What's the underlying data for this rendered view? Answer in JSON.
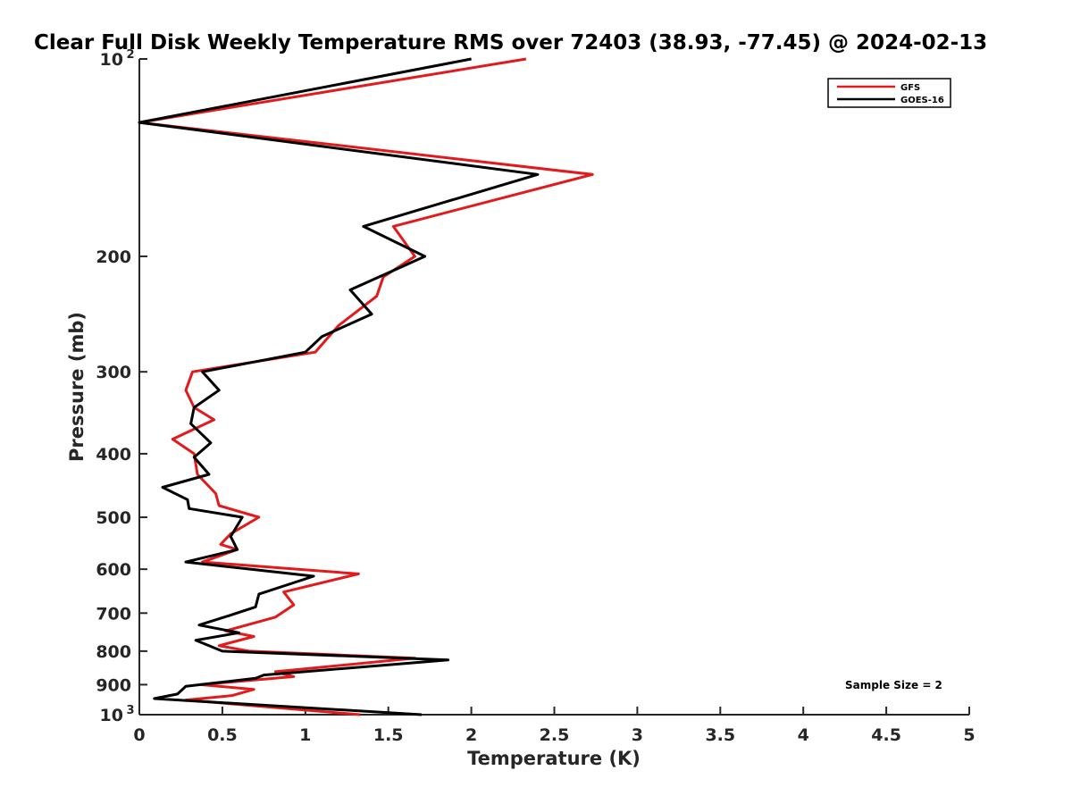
{
  "chart_data": {
    "type": "line",
    "title": "Clear Full Disk Weekly Temperature RMS over 72403 (38.93, -77.45) @ 2024-02-13",
    "xlabel": "Temperature (K)",
    "ylabel": "Pressure (mb)",
    "xlim": [
      0,
      5
    ],
    "ylim": [
      100,
      1000
    ],
    "y_scale": "log",
    "y_reversed": true,
    "x_ticks": [
      0,
      0.5,
      1,
      1.5,
      2,
      2.5,
      3,
      3.5,
      4,
      4.5,
      5
    ],
    "x_tick_labels": [
      "0",
      "0.5",
      "1",
      "1.5",
      "2",
      "2.5",
      "3",
      "3.5",
      "4",
      "4.5",
      "5"
    ],
    "y_ticks": [
      200,
      300,
      400,
      500,
      600,
      700,
      800,
      900
    ],
    "y_tick_labels": [
      "200",
      "300",
      "400",
      "500",
      "600",
      "700",
      "800",
      "900"
    ],
    "y_end_labels": [
      {
        "base": "10",
        "exp": "2",
        "value": 100
      },
      {
        "base": "10",
        "exp": "3",
        "value": 1000
      }
    ],
    "grid": false,
    "legend_position": "top-right",
    "annotation": "Sample Size = 2",
    "series": [
      {
        "name": "GFS",
        "color": "#e31a1c",
        "points": [
          [
            2.33,
            100
          ],
          [
            0.0,
            125
          ],
          [
            2.73,
            150
          ],
          [
            1.53,
            180
          ],
          [
            1.66,
            200
          ],
          [
            1.47,
            215
          ],
          [
            1.43,
            230
          ],
          [
            1.2,
            255
          ],
          [
            1.06,
            280
          ],
          [
            0.32,
            300
          ],
          [
            0.28,
            320
          ],
          [
            0.33,
            340
          ],
          [
            0.45,
            355
          ],
          [
            0.2,
            380
          ],
          [
            0.33,
            400
          ],
          [
            0.35,
            430
          ],
          [
            0.46,
            460
          ],
          [
            0.48,
            480
          ],
          [
            0.72,
            500
          ],
          [
            0.55,
            530
          ],
          [
            0.49,
            550
          ],
          [
            0.59,
            560
          ],
          [
            0.38,
            585
          ],
          [
            1.32,
            610
          ],
          [
            0.87,
            650
          ],
          [
            0.93,
            680
          ],
          [
            0.82,
            710
          ],
          [
            0.52,
            745
          ],
          [
            0.69,
            760
          ],
          [
            0.48,
            785
          ],
          [
            0.66,
            800
          ],
          [
            1.66,
            820
          ],
          [
            0.82,
            860
          ],
          [
            0.93,
            875
          ],
          [
            0.37,
            900
          ],
          [
            0.69,
            915
          ],
          [
            0.56,
            935
          ],
          [
            0.28,
            950
          ],
          [
            1.33,
            1000
          ]
        ]
      },
      {
        "name": "GOES-16",
        "color": "#000000",
        "points": [
          [
            2.0,
            100
          ],
          [
            0.0,
            125
          ],
          [
            2.4,
            150
          ],
          [
            1.35,
            180
          ],
          [
            1.72,
            200
          ],
          [
            1.27,
            225
          ],
          [
            1.4,
            245
          ],
          [
            1.1,
            265
          ],
          [
            1.0,
            280
          ],
          [
            0.38,
            300
          ],
          [
            0.48,
            320
          ],
          [
            0.33,
            340
          ],
          [
            0.31,
            360
          ],
          [
            0.43,
            385
          ],
          [
            0.33,
            405
          ],
          [
            0.42,
            430
          ],
          [
            0.14,
            450
          ],
          [
            0.29,
            470
          ],
          [
            0.3,
            485
          ],
          [
            0.62,
            500
          ],
          [
            0.55,
            535
          ],
          [
            0.59,
            560
          ],
          [
            0.28,
            585
          ],
          [
            1.05,
            615
          ],
          [
            0.72,
            655
          ],
          [
            0.7,
            685
          ],
          [
            0.55,
            705
          ],
          [
            0.36,
            730
          ],
          [
            0.6,
            750
          ],
          [
            0.34,
            770
          ],
          [
            0.5,
            800
          ],
          [
            1.86,
            825
          ],
          [
            0.75,
            870
          ],
          [
            0.7,
            880
          ],
          [
            0.28,
            905
          ],
          [
            0.23,
            930
          ],
          [
            0.09,
            945
          ],
          [
            1.7,
            1000
          ]
        ]
      }
    ]
  }
}
